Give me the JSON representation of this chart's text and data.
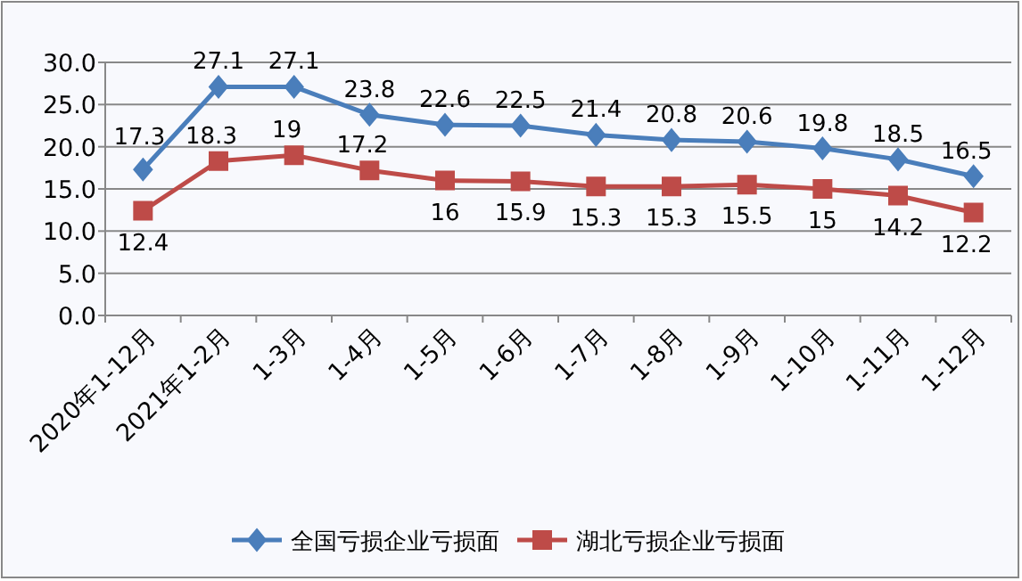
{
  "chart_data": {
    "type": "line",
    "categories": [
      "2020年1-12月",
      "2021年1-2月",
      "1-3月",
      "1-4月",
      "1-5月",
      "1-6月",
      "1-7月",
      "1-8月",
      "1-9月",
      "1-10月",
      "1-11月",
      "1-12月"
    ],
    "series": [
      {
        "name": "全国亏损企业亏损面",
        "color": "#4a7ebb",
        "marker": "diamond",
        "values": [
          17.3,
          27.1,
          27.1,
          23.8,
          22.6,
          22.5,
          21.4,
          20.8,
          20.6,
          19.8,
          18.5,
          16.5
        ]
      },
      {
        "name": "湖北亏损企业亏损面",
        "color": "#be4b48",
        "marker": "square",
        "values": [
          12.4,
          18.3,
          19,
          17.2,
          16,
          15.9,
          15.3,
          15.3,
          15.5,
          15,
          14.2,
          12.2
        ]
      }
    ],
    "ylim": [
      0,
      30
    ],
    "yticks": [
      {
        "value": 0,
        "label": "0.0"
      },
      {
        "value": 5,
        "label": "5.0"
      },
      {
        "value": 10,
        "label": "10.0"
      },
      {
        "value": 15,
        "label": "15.0"
      },
      {
        "value": 20,
        "label": "20.0"
      },
      {
        "value": 25,
        "label": "25.0"
      },
      {
        "value": 30,
        "label": "30.0"
      }
    ],
    "grid": "y",
    "legend": "bottom",
    "data_labels": true,
    "line_style": "solid"
  }
}
